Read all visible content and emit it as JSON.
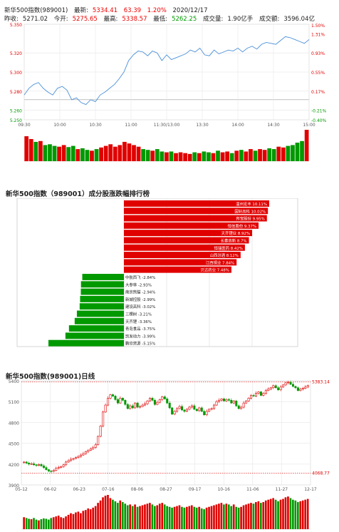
{
  "header": {
    "name": "新华500指数(989001)",
    "latest_label": "最新:",
    "latest_value": "5334.41",
    "change": "63.39",
    "change_pct": "1.20%",
    "date": "2020/12/17",
    "prev_close_label": "昨收:",
    "prev_close": "5271.02",
    "open_label": "今开:",
    "open": "5275.65",
    "high_label": "最高:",
    "high": "5338.57",
    "low_label": "最低:",
    "low": "5262.25",
    "volume_label": "成交量:",
    "volume": "1.90亿手",
    "amount_label": "成交额:",
    "amount": "3596.04亿"
  },
  "colors": {
    "up": "#e00000",
    "down": "#009900",
    "line": "#4a90d9",
    "grid": "#e6e6e6"
  },
  "chart_data": [
    {
      "type": "line",
      "title": "",
      "x_ticks": [
        "09:30",
        "10:00",
        "10:30",
        "11:00",
        "11:30/13:00",
        "13:30",
        "14:00",
        "14:30",
        "15:00"
      ],
      "y_ticks": [
        "5.350",
        "5.320",
        "5.300",
        "5.280",
        "5.260",
        "5.250"
      ],
      "y_ticks_right": [
        "1.50%",
        "1.31%",
        "0.93%",
        "0.55%",
        "0.17%",
        "-0.21%",
        "-0.40%"
      ],
      "ylim": [
        5250,
        5350
      ],
      "prev_close": 5271.02,
      "x": [
        0,
        4,
        8,
        12,
        16,
        20,
        24,
        28,
        32,
        36,
        40,
        44,
        48,
        52,
        56,
        60,
        64,
        68,
        72,
        76,
        80,
        84,
        88,
        92,
        96,
        100,
        104,
        108,
        112,
        116,
        120,
        124,
        128,
        132,
        136,
        140,
        144,
        148,
        152,
        156,
        160,
        164,
        168,
        172,
        176,
        180,
        184,
        188,
        192,
        196,
        200,
        204,
        208,
        212,
        216,
        220,
        224,
        228,
        232,
        236,
        240
      ],
      "y": [
        5276,
        5283,
        5287,
        5289,
        5283,
        5279,
        5276,
        5283,
        5285,
        5281,
        5271,
        5273,
        5268,
        5266,
        5271,
        5269,
        5276,
        5279,
        5283,
        5287,
        5293,
        5300,
        5312,
        5318,
        5322,
        5321,
        5317,
        5322,
        5320,
        5312,
        5318,
        5313,
        5315,
        5317,
        5319,
        5323,
        5321,
        5325,
        5318,
        5317,
        5323,
        5319,
        5321,
        5323,
        5322,
        5325,
        5321,
        5325,
        5327,
        5324,
        5329,
        5331,
        5330,
        5329,
        5333,
        5337,
        5336,
        5334,
        5332,
        5330,
        5334
      ],
      "volume": [
        62,
        55,
        48,
        50,
        40,
        42,
        38,
        36,
        40,
        35,
        38,
        30,
        32,
        28,
        26,
        30,
        34,
        38,
        42,
        36,
        40,
        48,
        44,
        40,
        36,
        30,
        28,
        26,
        30,
        24,
        22,
        24,
        20,
        22,
        20,
        18,
        22,
        20,
        24,
        22,
        20,
        26,
        22,
        24,
        20,
        26,
        28,
        24,
        30,
        26,
        30,
        28,
        32,
        30,
        36,
        34,
        38,
        40,
        46,
        50,
        78
      ],
      "volume_up": [
        1,
        1,
        0,
        1,
        0,
        0,
        0,
        1,
        1,
        0,
        0,
        1,
        0,
        0,
        1,
        0,
        1,
        1,
        1,
        1,
        1,
        1,
        1,
        1,
        1,
        0,
        0,
        1,
        0,
        0,
        1,
        0,
        1,
        1,
        1,
        1,
        0,
        1,
        0,
        0,
        1,
        0,
        1,
        1,
        0,
        1,
        0,
        1,
        1,
        0,
        1,
        1,
        0,
        0,
        1,
        1,
        0,
        0,
        0,
        0,
        1
      ]
    },
    {
      "type": "bar",
      "title": "新华500指数（989001）成分股涨跌幅排行榜",
      "categories": [
        "温州宏丰",
        "国轩高科",
        "邦宝股份",
        "恒信股份",
        "天齐锂业",
        "长春高新",
        "恒瑞医药",
        "山西汾酒",
        "江西铜业",
        "贝达药业",
        "中航西飞",
        "大参林",
        "南京熊猫",
        "新城控股",
        "建设高科",
        "三棵树",
        "天齐锂",
        "青岛食品",
        "凯发动力",
        "鹏欣资源"
      ],
      "values": [
        10.11,
        10.02,
        9.95,
        9.37,
        8.92,
        8.7,
        8.42,
        8.12,
        7.84,
        7.48,
        -2.84,
        -2.93,
        -2.94,
        -2.99,
        -3.02,
        -3.21,
        -3.36,
        -3.75,
        -3.99,
        -5.15
      ],
      "labels": [
        "温州宏丰 10.11%",
        "国轩高科 10.02%",
        "邦宝股份 9.95%",
        "恒信股份 9.37%",
        "天齐锂业 8.92%",
        "长春高新 8.7%",
        "恒瑞医药 8.42%",
        "山西汾酒 8.12%",
        "江西铜业 7.84%",
        "贝达药业 7.48%",
        "中航西飞 -2.84%",
        "大参林 -2.93%",
        "南京熊猫 -2.94%",
        "新城控股 -2.99%",
        "建设高科 -3.02%",
        "三棵树 -3.21%",
        "天齐锂 -3.36%",
        "青岛食品 -3.75%",
        "凯发动力 -3.99%",
        "鹏欣资源 -5.15%"
      ]
    },
    {
      "type": "candlestick",
      "title": "新华500指数(989001)日线",
      "x_ticks": [
        "05-12",
        "06-02",
        "06-23",
        "07-16",
        "08-06",
        "08-27",
        "09-17",
        "10-16",
        "11-06",
        "11-27",
        "12-17"
      ],
      "y_ticks": [
        "5400",
        "5100",
        "4800",
        "4500",
        "4200",
        "3900"
      ],
      "ylim": [
        3900,
        5400
      ],
      "max_marker": "5383.14",
      "min_marker": "4068.77",
      "max_value": 5383.14,
      "min_value": 4068.77,
      "close": [
        4230,
        4215,
        4200,
        4205,
        4190,
        4180,
        4195,
        4175,
        4150,
        4120,
        4100,
        4095,
        4110,
        4140,
        4150,
        4165,
        4190,
        4230,
        4250,
        4270,
        4280,
        4295,
        4310,
        4330,
        4350,
        4380,
        4400,
        4420,
        4440,
        4480,
        4600,
        4750,
        4950,
        5050,
        5150,
        5200,
        5180,
        5130,
        5080,
        5150,
        5120,
        5060,
        5000,
        5040,
        5010,
        5080,
        5020,
        5030,
        5050,
        5070,
        5110,
        5150,
        5120,
        5060,
        5090,
        5130,
        5170,
        5140,
        5080,
        5010,
        4920,
        4960,
        5000,
        5030,
        4980,
        4960,
        4990,
        5020,
        5040,
        4990,
        4970,
        5010,
        4960,
        4910,
        4960,
        4990,
        5000,
        5050,
        5100,
        5120,
        5140,
        5110,
        5130,
        5120,
        5080,
        5110,
        5040,
        5000,
        5020,
        5080,
        5110,
        5150,
        5190,
        5180,
        5220,
        5240,
        5190,
        5220,
        5260,
        5280,
        5300,
        5330,
        5300,
        5270,
        5310,
        5340,
        5370,
        5380,
        5350,
        5320,
        5300,
        5260,
        5280,
        5290,
        5310,
        5334
      ],
      "volume": [
        30,
        28,
        26,
        25,
        28,
        24,
        22,
        25,
        27,
        26,
        24,
        28,
        30,
        32,
        34,
        30,
        28,
        32,
        36,
        40,
        38,
        42,
        44,
        40,
        46,
        48,
        52,
        50,
        54,
        58,
        66,
        72,
        80,
        84,
        86,
        78,
        74,
        70,
        66,
        72,
        68,
        64,
        60,
        62,
        58,
        62,
        56,
        58,
        60,
        62,
        64,
        66,
        62,
        58,
        60,
        64,
        66,
        62,
        58,
        56,
        54,
        56,
        58,
        60,
        56,
        54,
        56,
        58,
        60,
        56,
        54,
        56,
        52,
        50,
        54,
        56,
        58,
        60,
        62,
        64,
        66,
        62,
        64,
        62,
        58,
        62,
        56,
        54,
        56,
        60,
        62,
        64,
        66,
        64,
        68,
        70,
        66,
        68,
        72,
        74,
        76,
        78,
        74,
        70,
        74,
        76,
        80,
        82,
        78,
        74,
        72,
        68,
        70,
        72,
        74,
        76
      ]
    }
  ]
}
